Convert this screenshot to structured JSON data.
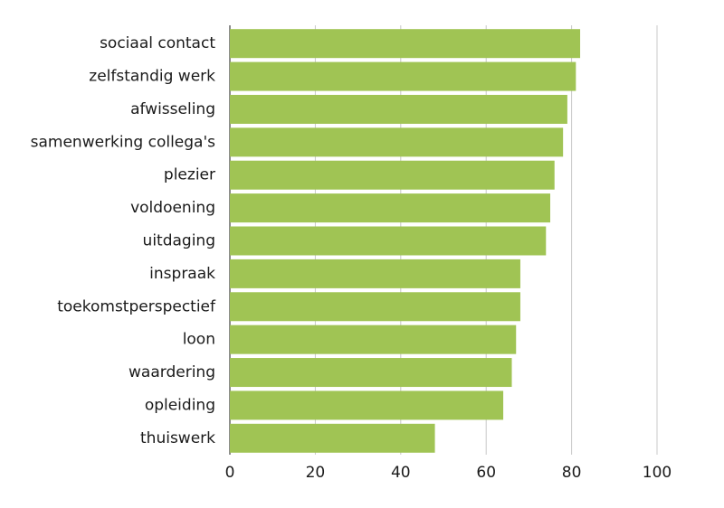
{
  "chart_data": {
    "type": "barh",
    "categories": [
      "sociaal contact",
      "zelfstandig werk",
      "afwisseling",
      "samenwerking collega's",
      "plezier",
      "voldoening",
      "uitdaging",
      "inspraak",
      "toekomstperspectief",
      "loon",
      "waardering",
      "opleiding",
      "thuiswerk"
    ],
    "values": [
      82,
      81,
      79,
      78,
      76,
      75,
      74,
      68,
      68,
      67,
      66,
      64,
      48
    ],
    "color": "#a0c454",
    "xlim": [
      0,
      100
    ],
    "xticks": [
      0,
      20,
      40,
      60,
      80,
      100
    ],
    "grid": true
  }
}
